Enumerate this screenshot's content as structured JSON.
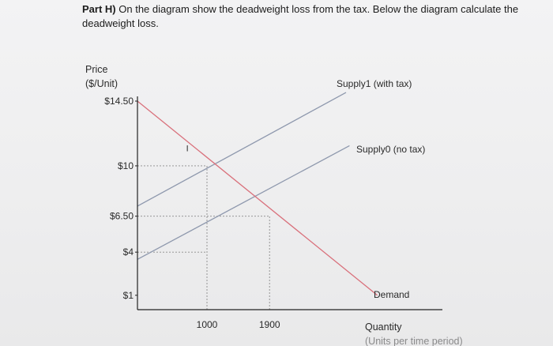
{
  "question": {
    "lead": "Part H)",
    "text": "On the diagram show the deadweight loss from the tax. Below the diagram calculate the deadweight loss."
  },
  "chart_data": {
    "type": "line",
    "title": "",
    "ylabel_line1": "Price",
    "ylabel_line2": "($/Unit)",
    "xlabel_line1": "Quantity",
    "xlabel_line2": "(Units per time period)",
    "y_ticks": [
      {
        "value": 14.5,
        "label": "$14.50"
      },
      {
        "value": 10,
        "label": "$10"
      },
      {
        "value": 6.5,
        "label": "$6.50"
      },
      {
        "value": 4,
        "label": "$4"
      },
      {
        "value": 1,
        "label": "$1"
      }
    ],
    "x_ticks": [
      {
        "value": 1000,
        "label": "1000"
      },
      {
        "value": 1900,
        "label": "1900"
      }
    ],
    "xlim": [
      0,
      3500
    ],
    "ylim": [
      0,
      14.5
    ],
    "series": [
      {
        "name": "Supply1 (with tax)",
        "color": "#8e98ad",
        "points": [
          [
            0,
            7.2
          ],
          [
            3000,
            15.1
          ]
        ]
      },
      {
        "name": "Supply0 (no tax)",
        "color": "#8e98ad",
        "points": [
          [
            0,
            3.5
          ],
          [
            3050,
            11.4
          ]
        ]
      },
      {
        "name": "Demand",
        "color": "#d9707b",
        "points": [
          [
            0,
            14.5
          ],
          [
            3450,
            1.0
          ]
        ]
      }
    ],
    "guides": [
      {
        "from": [
          0,
          10
        ],
        "to": [
          1000,
          10
        ]
      },
      {
        "from": [
          1000,
          0
        ],
        "to": [
          1000,
          10
        ]
      },
      {
        "from": [
          0,
          6.5
        ],
        "to": [
          1900,
          6.5
        ]
      },
      {
        "from": [
          1900,
          0
        ],
        "to": [
          1900,
          6.5
        ]
      },
      {
        "from": [
          0,
          4
        ],
        "to": [
          1000,
          4
        ]
      }
    ],
    "annotations": [
      {
        "text": "I",
        "x": 700,
        "y": 11.0
      }
    ],
    "grid": false
  }
}
